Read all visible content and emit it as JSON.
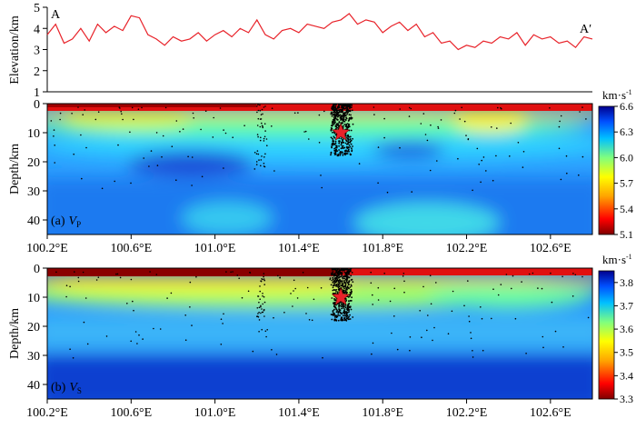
{
  "chart_data": [
    {
      "type": "line",
      "panel": "elevation",
      "ylabel": "Elevation/km",
      "ylim": [
        1,
        5
      ],
      "yticks": [
        "1",
        "2",
        "3",
        "4",
        "5"
      ],
      "start_label": "A",
      "end_label": "A′",
      "xlim": [
        100.2,
        102.8
      ],
      "series": [
        {
          "name": "elevation profile",
          "color": "#e8232a",
          "x": [
            100.2,
            100.24,
            100.28,
            100.32,
            100.36,
            100.4,
            100.44,
            100.48,
            100.52,
            100.56,
            100.6,
            100.64,
            100.68,
            100.72,
            100.76,
            100.8,
            100.84,
            100.88,
            100.92,
            100.96,
            101.0,
            101.04,
            101.08,
            101.12,
            101.16,
            101.2,
            101.24,
            101.28,
            101.32,
            101.36,
            101.4,
            101.44,
            101.48,
            101.52,
            101.56,
            101.6,
            101.64,
            101.68,
            101.72,
            101.76,
            101.8,
            101.84,
            101.88,
            101.92,
            101.96,
            102.0,
            102.04,
            102.08,
            102.12,
            102.16,
            102.2,
            102.24,
            102.28,
            102.32,
            102.36,
            102.4,
            102.44,
            102.48,
            102.52,
            102.56,
            102.6,
            102.64,
            102.68,
            102.72,
            102.76,
            102.8
          ],
          "y": [
            3.7,
            4.2,
            3.3,
            3.5,
            4.0,
            3.4,
            4.2,
            3.8,
            4.1,
            3.9,
            4.6,
            4.5,
            3.7,
            3.5,
            3.2,
            3.6,
            3.4,
            3.5,
            3.8,
            3.4,
            3.7,
            3.9,
            3.6,
            4.0,
            3.8,
            4.4,
            3.7,
            3.5,
            3.9,
            4.0,
            3.8,
            4.2,
            4.1,
            4.0,
            4.3,
            4.4,
            4.7,
            4.2,
            4.4,
            4.3,
            3.8,
            4.1,
            4.3,
            3.9,
            4.2,
            3.6,
            3.8,
            3.3,
            3.4,
            3.0,
            3.2,
            3.1,
            3.4,
            3.3,
            3.6,
            3.5,
            3.8,
            3.2,
            3.7,
            3.5,
            3.6,
            3.3,
            3.4,
            3.1,
            3.6,
            3.5
          ]
        }
      ]
    },
    {
      "type": "heatmap",
      "panel_label": "(a)",
      "variable": "V",
      "variable_sub": "P",
      "ylabel": "Depth/km",
      "ylim": [
        0,
        45
      ],
      "yticks": [
        "0",
        "10",
        "20",
        "30",
        "40"
      ],
      "xlim": [
        100.2,
        102.8
      ],
      "xticks": [
        "100.2°E",
        "100.6°E",
        "101.0°E",
        "101.4°E",
        "101.8°E",
        "102.2°E",
        "102.6°E"
      ],
      "colorbar_unit": "km·s",
      "colorbar_unit_sup": "-1",
      "colorbar_ticks": [
        "5.1",
        "5.4",
        "5.7",
        "6.0",
        "6.3",
        "6.6"
      ],
      "colorbar_range": [
        5.1,
        6.6
      ],
      "colormap": "jet_reversed",
      "star": {
        "lon": 101.6,
        "depth": 10,
        "color": "#e8232a"
      }
    },
    {
      "type": "heatmap",
      "panel_label": "(b)",
      "variable": "V",
      "variable_sub": "S",
      "ylabel": "Depth/km",
      "ylim": [
        0,
        45
      ],
      "yticks": [
        "0",
        "10",
        "20",
        "30",
        "40"
      ],
      "xlim": [
        100.2,
        102.8
      ],
      "xticks": [
        "100.2°E",
        "100.6°E",
        "101.0°E",
        "101.4°E",
        "101.8°E",
        "102.2°E",
        "102.6°E"
      ],
      "colorbar_unit": "km·s",
      "colorbar_unit_sup": "-1",
      "colorbar_ticks": [
        "3.3",
        "3.4",
        "3.5",
        "3.6",
        "3.7",
        "3.8"
      ],
      "colorbar_range": [
        3.3,
        3.85
      ],
      "colormap": "jet_reversed",
      "star": {
        "lon": 101.6,
        "depth": 10,
        "color": "#e8232a"
      }
    }
  ]
}
